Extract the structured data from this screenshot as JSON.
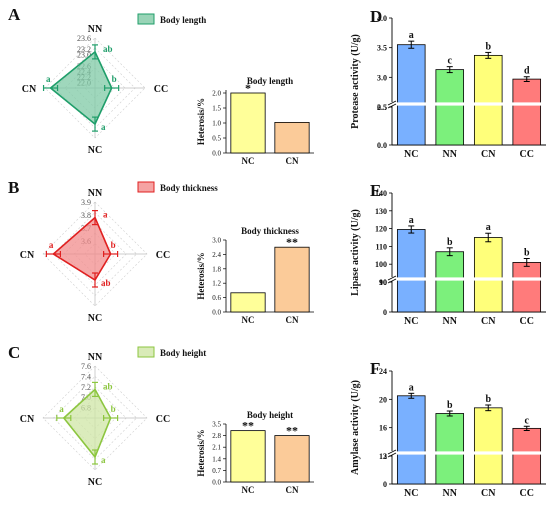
{
  "chart_data": [
    {
      "id": "radar_A",
      "panel_label": "A",
      "type": "radar",
      "axes": [
        "NN",
        "CC",
        "NC",
        "CN"
      ],
      "legend": "Body length",
      "ticks": [
        "22.0",
        "22.2",
        "22.4",
        "22.6",
        "23.0",
        "23.2",
        "23.6"
      ],
      "range": [
        21.8,
        23.6
      ],
      "values": {
        "NN": 23.1,
        "CC": 22.4,
        "NC": 23.1,
        "CN": 23.4
      },
      "letters": {
        "NN": "ab",
        "CC": "b",
        "NC": "a",
        "CN": "a"
      },
      "color": "#1f9e6a",
      "fill": "#7fc9a5"
    },
    {
      "id": "bar_A",
      "type": "bar",
      "title": "Body length",
      "ylabel": "Heterosis/%",
      "categories": [
        "NC",
        "CN"
      ],
      "values": [
        2.0,
        1.02
      ],
      "ylim": [
        0,
        2.1
      ],
      "yticks": [
        "0.0",
        "0.5",
        "1.0",
        "1.5",
        "2.0"
      ],
      "annotations": [
        "*",
        ""
      ],
      "colors": [
        "#ffff99",
        "#fbcb99"
      ]
    },
    {
      "id": "radar_B",
      "panel_label": "B",
      "type": "radar",
      "axes": [
        "NN",
        "CC",
        "NC",
        "CN"
      ],
      "legend": "Body thickness",
      "ticks": [
        "3.6",
        "3.7",
        "3.8",
        "3.9"
      ],
      "range": [
        3.5,
        3.9
      ],
      "values": {
        "NN": 3.78,
        "CC": 3.62,
        "NC": 3.7,
        "CN": 3.82
      },
      "letters": {
        "NN": "a",
        "CC": "b",
        "NC": "ab",
        "CN": "a"
      },
      "color": "#e02020",
      "fill": "#f28c8c"
    },
    {
      "id": "bar_B",
      "type": "bar",
      "title": "Body thickness",
      "ylabel": "Heterosis/%",
      "categories": [
        "NC",
        "CN"
      ],
      "values": [
        0.8,
        2.7
      ],
      "ylim": [
        0,
        3.0
      ],
      "yticks": [
        "0.0",
        "0.6",
        "1.2",
        "1.8",
        "2.4",
        "3.0"
      ],
      "annotations": [
        "",
        "**"
      ],
      "colors": [
        "#ffff99",
        "#fbcb99"
      ]
    },
    {
      "id": "radar_C",
      "panel_label": "C",
      "type": "radar",
      "axes": [
        "NN",
        "CC",
        "NC",
        "CN"
      ],
      "legend": "Body height",
      "ticks": [
        "6.8",
        "7.0",
        "7.2",
        "7.4",
        "7.6"
      ],
      "range": [
        6.6,
        7.6
      ],
      "values": {
        "NN": 7.15,
        "CC": 6.9,
        "NC": 7.35,
        "CN": 7.2
      },
      "letters": {
        "NN": "ab",
        "CC": "b",
        "NC": "a",
        "CN": "a"
      },
      "color": "#8cc63f",
      "fill": "#cfe6a6"
    },
    {
      "id": "bar_C",
      "type": "bar",
      "title": "Body height",
      "ylabel": "Heterosis/%",
      "categories": [
        "NC",
        "CN"
      ],
      "values": [
        3.1,
        2.8
      ],
      "ylim": [
        0,
        3.5
      ],
      "yticks": [
        "0.0",
        "0.7",
        "1.4",
        "2.1",
        "2.8",
        "3.5"
      ],
      "annotations": [
        "**",
        "**"
      ],
      "colors": [
        "#ffff99",
        "#fbcb99"
      ]
    },
    {
      "id": "bar_D",
      "panel_label": "D",
      "type": "bar",
      "ylabel": "Protease activity (U/g)",
      "categories": [
        "NC",
        "NN",
        "CN",
        "CC"
      ],
      "values": [
        3.55,
        3.13,
        3.37,
        2.97
      ],
      "errors": [
        0.06,
        0.05,
        0.05,
        0.04
      ],
      "letters": [
        "a",
        "c",
        "b",
        "d"
      ],
      "axis_break": [
        0.5,
        2.5
      ],
      "yticks": [
        "0.0",
        "0.5",
        "2.5",
        "3.0",
        "3.5",
        "4.0"
      ],
      "colors": [
        "#79b0ff",
        "#7cf07c",
        "#ffff7a",
        "#ff7b7b"
      ]
    },
    {
      "id": "bar_E",
      "panel_label": "E",
      "type": "bar",
      "ylabel": "Lipase activity (U/g)",
      "categories": [
        "NC",
        "NN",
        "CN",
        "CC"
      ],
      "values": [
        119.5,
        107,
        115,
        101
      ],
      "errors": [
        2,
        2.2,
        2.4,
        2.2
      ],
      "letters": [
        "a",
        "b",
        "a",
        "b"
      ],
      "axis_break": [
        10,
        90
      ],
      "yticks": [
        "0",
        "10",
        "90",
        "100",
        "110",
        "120",
        "130",
        "140"
      ],
      "colors": [
        "#79b0ff",
        "#7cf07c",
        "#ffff7a",
        "#ff7b7b"
      ]
    },
    {
      "id": "bar_F",
      "panel_label": "F",
      "type": "bar",
      "ylabel": "Amylase activity (U/g)",
      "categories": [
        "NC",
        "NN",
        "CN",
        "CC"
      ],
      "values": [
        20.5,
        18,
        18.8,
        15.9
      ],
      "errors": [
        0.35,
        0.35,
        0.4,
        0.3
      ],
      "letters": [
        "a",
        "b",
        "b",
        "c"
      ],
      "axis_break": [
        3,
        12
      ],
      "yticks": [
        "0",
        "3",
        "12",
        "16",
        "20",
        "24"
      ],
      "colors": [
        "#79b0ff",
        "#7cf07c",
        "#ffff7a",
        "#ff7b7b"
      ]
    }
  ]
}
